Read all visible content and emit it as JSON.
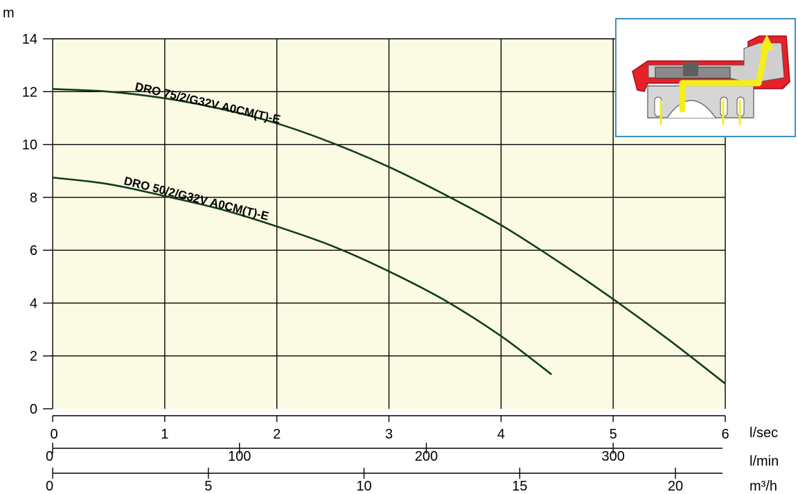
{
  "chart_data": {
    "type": "line",
    "ylabel": "m",
    "ylim": [
      0,
      14
    ],
    "yticks": [
      0,
      2,
      4,
      6,
      8,
      10,
      12,
      14
    ],
    "xlim": [
      0,
      6
    ],
    "grid": true,
    "x_axes": [
      {
        "unit": "l/sec",
        "ticks": [
          0,
          1,
          2,
          3,
          4,
          5,
          6
        ],
        "factor": 1
      },
      {
        "unit": "l/min",
        "ticks": [
          0,
          100,
          200,
          300
        ],
        "factor": 60
      },
      {
        "unit": "m³/h",
        "ticks": [
          0,
          5,
          10,
          15,
          20
        ],
        "factor": 3.6
      }
    ],
    "series": [
      {
        "name": "DRO 75/2/G32V A0CM(T)-E",
        "color": "#0f3d1a",
        "x": [
          0,
          0.5,
          1.0,
          1.5,
          2.0,
          2.5,
          3.0,
          3.5,
          4.0,
          4.5,
          5.0,
          5.5,
          6.0
        ],
        "y": [
          12.1,
          12.0,
          11.75,
          11.35,
          10.8,
          10.05,
          9.15,
          8.1,
          6.95,
          5.6,
          4.15,
          2.6,
          0.95
        ]
      },
      {
        "name": "DRO 50/2/G32V A0CM(T)-E",
        "color": "#0f3d1a",
        "x": [
          0,
          0.5,
          1.0,
          1.5,
          2.0,
          2.5,
          3.0,
          3.5,
          4.0,
          4.45
        ],
        "y": [
          8.75,
          8.5,
          8.05,
          7.55,
          6.9,
          6.15,
          5.2,
          4.1,
          2.75,
          1.3
        ]
      }
    ]
  },
  "inset": {
    "icon": "pump-cross-section-icon"
  }
}
